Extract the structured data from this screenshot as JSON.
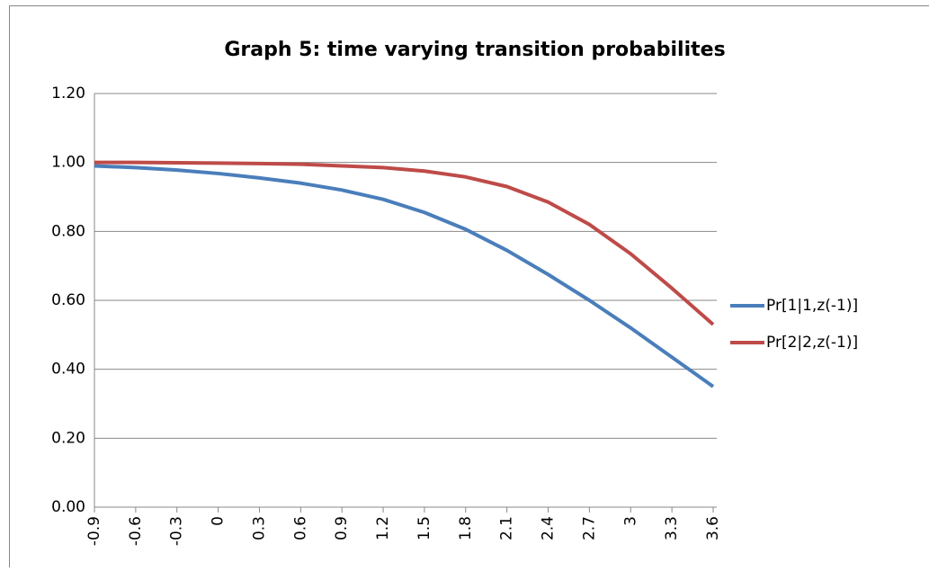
{
  "chart_data": {
    "type": "line",
    "title": "Graph 5: time varying transition probabilites",
    "categories": [
      "-0.9",
      "-0.6",
      "-0.3",
      "0",
      "0.3",
      "0.6",
      "0.9",
      "1.2",
      "1.5",
      "1.8",
      "2.1",
      "2.4",
      "2.7",
      "3",
      "3.3",
      "3.6"
    ],
    "series": [
      {
        "name": "Pr[1|1,z(-1)]",
        "color": "#4a7ebb",
        "values": [
          0.99,
          0.985,
          0.978,
          0.968,
          0.955,
          0.94,
          0.92,
          0.893,
          0.855,
          0.806,
          0.745,
          0.675,
          0.6,
          0.52,
          0.435,
          0.35
        ]
      },
      {
        "name": "Pr[2|2,z(-1)]",
        "color": "#be4b48",
        "values": [
          1.0,
          1.0,
          0.999,
          0.998,
          0.997,
          0.995,
          0.99,
          0.985,
          0.975,
          0.958,
          0.93,
          0.885,
          0.82,
          0.735,
          0.635,
          0.53
        ]
      }
    ],
    "ylim": [
      0,
      1.2
    ],
    "yticks": [
      {
        "value": 0,
        "label": "0.00"
      },
      {
        "value": 0.2,
        "label": "0.20"
      },
      {
        "value": 0.4,
        "label": "0.40"
      },
      {
        "value": 0.6,
        "label": "0.60"
      },
      {
        "value": 0.8,
        "label": "0.80"
      },
      {
        "value": 1,
        "label": "1.00"
      },
      {
        "value": 1.2,
        "label": "1.20"
      }
    ],
    "grid": true,
    "legend": "right"
  }
}
